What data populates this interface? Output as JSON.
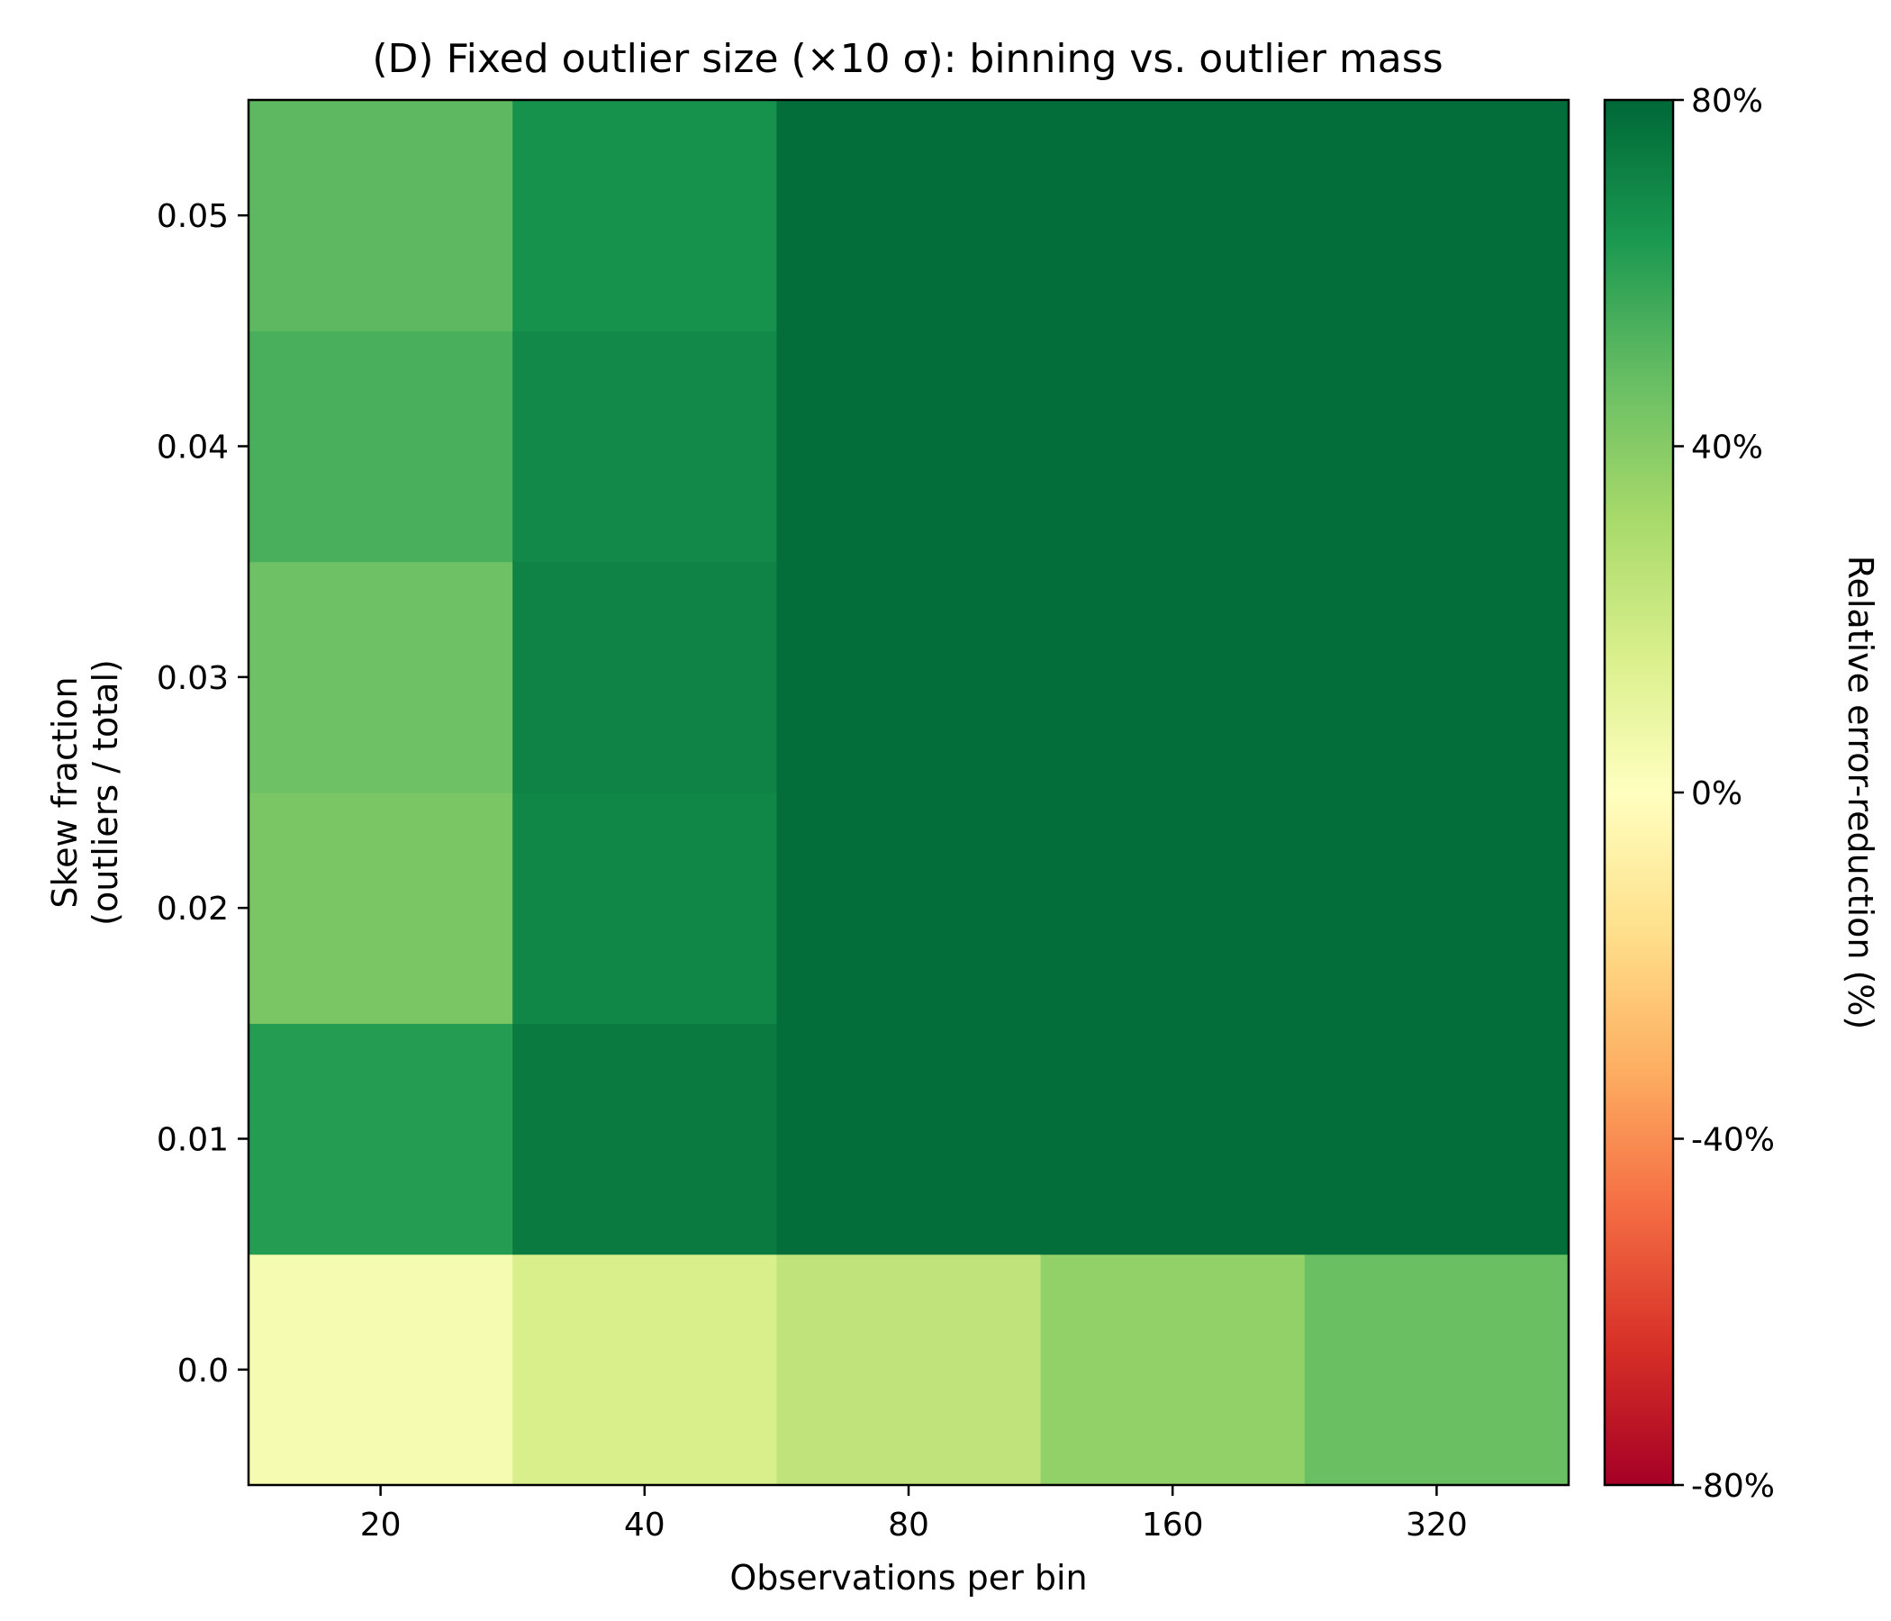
{
  "chart_data": {
    "type": "heatmap",
    "title": "(D)  Fixed outlier size (×10 σ): binning vs. outlier mass",
    "xlabel": "Observations per bin",
    "ylabel_line1": "Skew fraction",
    "ylabel_line2": "(outliers / total)",
    "x_categories": [
      "20",
      "40",
      "80",
      "160",
      "320"
    ],
    "y_categories": [
      "0.0",
      "0.01",
      "0.02",
      "0.03",
      "0.04",
      "0.05"
    ],
    "values": [
      [
        4,
        16,
        24,
        37,
        47
      ],
      [
        62,
        74,
        78,
        78,
        78
      ],
      [
        43,
        70,
        78,
        78,
        78
      ],
      [
        46,
        71,
        78,
        78,
        78
      ],
      [
        54,
        69,
        78,
        78,
        78
      ],
      [
        50,
        66,
        78,
        78,
        78
      ]
    ],
    "colorbar": {
      "label": "Relative error-reduction (%)",
      "min": -80,
      "max": 80,
      "ticks": [
        80,
        40,
        0,
        -40,
        -80
      ],
      "tick_labels": [
        "80%",
        "40%",
        "0%",
        "-40%",
        "-80%"
      ],
      "colormap": "RdYlGn",
      "colormap_stops": [
        "#a50026",
        "#d73027",
        "#f46d43",
        "#fdae61",
        "#fee08b",
        "#ffffbf",
        "#d9ef8b",
        "#a6d96a",
        "#66bd63",
        "#1a9850",
        "#006837"
      ]
    }
  }
}
